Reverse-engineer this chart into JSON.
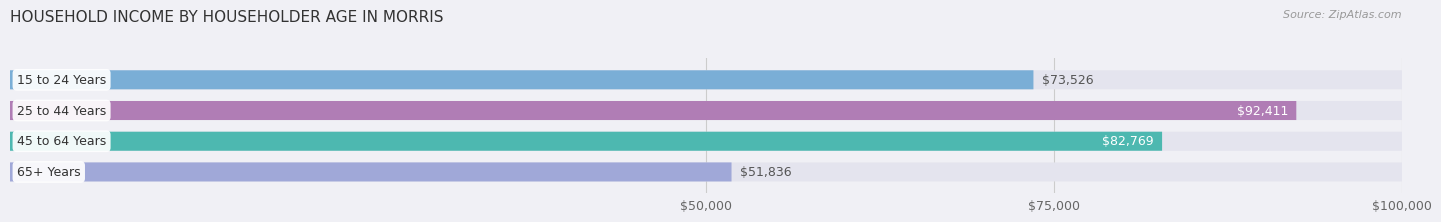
{
  "title": "HOUSEHOLD INCOME BY HOUSEHOLDER AGE IN MORRIS",
  "source": "Source: ZipAtlas.com",
  "categories": [
    "15 to 24 Years",
    "25 to 44 Years",
    "45 to 64 Years",
    "65+ Years"
  ],
  "values": [
    73526,
    92411,
    82769,
    51836
  ],
  "bar_colors": [
    "#7aaed6",
    "#b07db5",
    "#4db8b0",
    "#a0a8d8"
  ],
  "value_labels": [
    "$73,526",
    "$92,411",
    "$82,769",
    "$51,836"
  ],
  "value_inside": [
    false,
    true,
    true,
    false
  ],
  "xlim": [
    0,
    100000
  ],
  "xticks": [
    50000,
    75000,
    100000
  ],
  "xtick_labels": [
    "$50,000",
    "$75,000",
    "$100,000"
  ],
  "bar_height": 0.62,
  "background_color": "#f0f0f5",
  "bar_bg_color": "#e4e4ee",
  "title_fontsize": 11,
  "label_fontsize": 9,
  "value_fontsize": 9,
  "source_fontsize": 8
}
